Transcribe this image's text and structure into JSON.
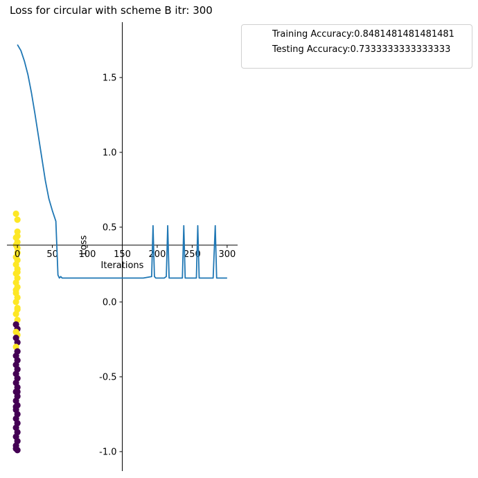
{
  "chart_data": {
    "type": "line",
    "title": "Loss for circular with scheme B itr: 300",
    "xlabel": "Iterations",
    "ylabel": "Loss",
    "xlim": [
      -15,
      315
    ],
    "ylim": [
      -1.13,
      1.87
    ],
    "xticks": [
      0,
      50,
      100,
      150,
      200,
      250,
      300
    ],
    "yticks": [
      -1.0,
      -0.5,
      0.0,
      0.5,
      1.0,
      1.5
    ],
    "grid": false,
    "legend": {
      "placement": "outside-top-right",
      "entries": [
        "Training Accuracy:0.8481481481481481",
        "Testing Accuracy:0.7333333333333333"
      ]
    },
    "series": [
      {
        "color": "#1f77b4",
        "x": [
          0,
          5,
          10,
          15,
          20,
          25,
          30,
          35,
          40,
          45,
          50,
          55,
          58,
          60,
          62,
          64,
          70,
          80,
          100,
          120,
          140,
          160,
          180,
          192,
          194,
          196,
          198,
          200,
          210,
          213,
          215,
          217,
          220,
          230,
          236,
          238,
          240,
          242,
          250,
          256,
          258,
          260,
          262,
          270,
          280,
          283,
          285,
          287,
          290,
          300
        ],
        "y": [
          1.72,
          1.68,
          1.61,
          1.52,
          1.4,
          1.26,
          1.11,
          0.96,
          0.81,
          0.69,
          0.61,
          0.54,
          0.18,
          0.16,
          0.17,
          0.16,
          0.16,
          0.16,
          0.16,
          0.16,
          0.16,
          0.16,
          0.16,
          0.17,
          0.51,
          0.17,
          0.16,
          0.16,
          0.16,
          0.17,
          0.51,
          0.16,
          0.16,
          0.16,
          0.16,
          0.51,
          0.16,
          0.16,
          0.16,
          0.16,
          0.51,
          0.16,
          0.16,
          0.16,
          0.16,
          0.51,
          0.16,
          0.16,
          0.16,
          0.16
        ]
      }
    ],
    "scatter": {
      "colors": {
        "0": "#440154",
        "1": "#fde725"
      },
      "points": [
        {
          "x": -2,
          "y": 0.59,
          "c": 1
        },
        {
          "x": 0,
          "y": 0.55,
          "c": 1
        },
        {
          "x": 0,
          "y": 0.47,
          "c": 1
        },
        {
          "x": 0,
          "y": 0.44,
          "c": 1
        },
        {
          "x": -2,
          "y": 0.43,
          "c": 1
        },
        {
          "x": 0,
          "y": 0.4,
          "c": 1
        },
        {
          "x": -2,
          "y": 0.38,
          "c": 1
        },
        {
          "x": 0,
          "y": 0.36,
          "c": 1
        },
        {
          "x": 0,
          "y": 0.33,
          "c": 1
        },
        {
          "x": -2,
          "y": 0.3,
          "c": 1
        },
        {
          "x": 0,
          "y": 0.28,
          "c": 1
        },
        {
          "x": -2,
          "y": 0.25,
          "c": 1
        },
        {
          "x": 0,
          "y": 0.22,
          "c": 1
        },
        {
          "x": -2,
          "y": 0.19,
          "c": 1
        },
        {
          "x": 0,
          "y": 0.16,
          "c": 1
        },
        {
          "x": -2,
          "y": 0.13,
          "c": 1
        },
        {
          "x": 0,
          "y": 0.1,
          "c": 1
        },
        {
          "x": -2,
          "y": 0.06,
          "c": 1
        },
        {
          "x": 0,
          "y": 0.03,
          "c": 1
        },
        {
          "x": -2,
          "y": 0.0,
          "c": 1
        },
        {
          "x": 0,
          "y": -0.04,
          "c": 1
        },
        {
          "x": -2,
          "y": -0.08,
          "c": 1
        },
        {
          "x": 0,
          "y": -0.12,
          "c": 1
        },
        {
          "x": -2,
          "y": -0.15,
          "c": 1
        },
        {
          "x": 0,
          "y": -0.18,
          "c": 0
        },
        {
          "x": -2,
          "y": -0.2,
          "c": 1
        },
        {
          "x": 0,
          "y": -0.22,
          "c": 1
        },
        {
          "x": -2,
          "y": -0.24,
          "c": 0
        },
        {
          "x": 0,
          "y": -0.27,
          "c": 0
        },
        {
          "x": -2,
          "y": -0.3,
          "c": 1
        },
        {
          "x": 0,
          "y": -0.33,
          "c": 0
        },
        {
          "x": -2,
          "y": -0.36,
          "c": 0
        },
        {
          "x": 0,
          "y": -0.39,
          "c": 0
        },
        {
          "x": -2,
          "y": -0.42,
          "c": 0
        },
        {
          "x": 0,
          "y": -0.45,
          "c": 0
        },
        {
          "x": -2,
          "y": -0.48,
          "c": 0
        },
        {
          "x": 0,
          "y": -0.51,
          "c": 0
        },
        {
          "x": -2,
          "y": -0.54,
          "c": 0
        },
        {
          "x": 0,
          "y": -0.57,
          "c": 0
        },
        {
          "x": -2,
          "y": -0.6,
          "c": 0
        },
        {
          "x": 0,
          "y": -0.63,
          "c": 0
        },
        {
          "x": -2,
          "y": -0.66,
          "c": 0
        },
        {
          "x": 0,
          "y": -0.69,
          "c": 0
        },
        {
          "x": -2,
          "y": -0.72,
          "c": 0
        },
        {
          "x": 0,
          "y": -0.75,
          "c": 0
        },
        {
          "x": -2,
          "y": -0.78,
          "c": 0
        },
        {
          "x": 0,
          "y": -0.81,
          "c": 0
        },
        {
          "x": -2,
          "y": -0.84,
          "c": 0
        },
        {
          "x": 0,
          "y": -0.87,
          "c": 0
        },
        {
          "x": -2,
          "y": -0.9,
          "c": 0
        },
        {
          "x": 0,
          "y": -0.93,
          "c": 0
        },
        {
          "x": -2,
          "y": -0.96,
          "c": 0
        },
        {
          "x": 0,
          "y": -0.99,
          "c": 0
        },
        {
          "x": -2,
          "y": -0.98,
          "c": 0
        },
        {
          "x": 0,
          "y": -0.6,
          "c": 0
        },
        {
          "x": -2,
          "y": -0.15,
          "c": 0
        },
        {
          "x": 0,
          "y": 0.2,
          "c": 1
        },
        {
          "x": -2,
          "y": 0.08,
          "c": 1
        },
        {
          "x": 0,
          "y": -0.05,
          "c": 1
        },
        {
          "x": -2,
          "y": -0.7,
          "c": 0
        }
      ]
    }
  }
}
